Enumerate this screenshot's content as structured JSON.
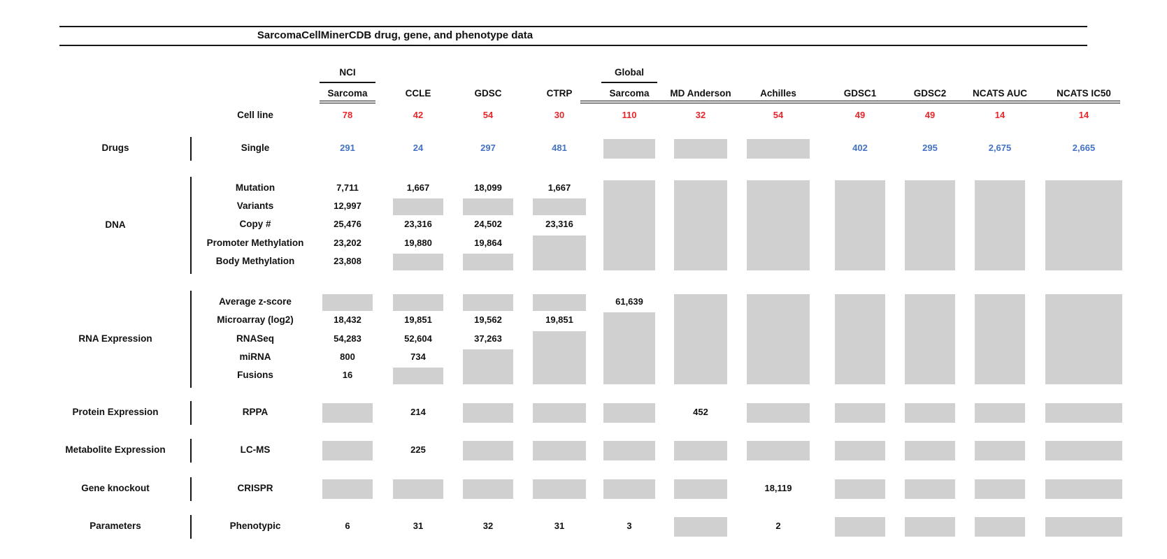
{
  "colors": {
    "black_text": "#111111",
    "red_value": "#e8262b",
    "blue_value": "#4472c4",
    "missing_box": "#d0d0d0",
    "rule_line": "#161616"
  },
  "chart_data": {
    "type": "table",
    "title": "SarcomaCellMinerCDB drug, gene, and phenotype data",
    "column_groups": [
      {
        "top_label": "NCI",
        "over_column": 0
      },
      {
        "top_label": "Global",
        "over_column": 4
      }
    ],
    "columns": [
      "Sarcoma",
      "CCLE",
      "GDSC",
      "CTRP",
      "Sarcoma",
      "MD Anderson",
      "Achilles",
      "GDSC1",
      "GDSC2",
      "NCATS AUC",
      "NCATS IC50"
    ],
    "cell_line": {
      "label": "Cell line",
      "value_color": "red",
      "values": [
        "78",
        "42",
        "54",
        "30",
        "110",
        "32",
        "54",
        "49",
        "49",
        "14",
        "14"
      ]
    },
    "missing_cells_note": null,
    "sections": [
      {
        "category": "Drugs",
        "rows": [
          {
            "label": "Single",
            "value_color": "blue",
            "cells": [
              "291",
              "24",
              "297",
              "481",
              null,
              null,
              null,
              "402",
              "295",
              "2,675",
              "2,665"
            ]
          }
        ]
      },
      {
        "category": "DNA",
        "rows": [
          {
            "label": "Mutation",
            "value_color": "black",
            "cells": [
              "7,711",
              "1,667",
              "18,099",
              "1,667",
              null,
              null,
              null,
              null,
              null,
              null,
              null
            ]
          },
          {
            "label": "Variants",
            "value_color": "black",
            "cells": [
              "12,997",
              null,
              null,
              null,
              null,
              null,
              null,
              null,
              null,
              null,
              null
            ]
          },
          {
            "label": "Copy #",
            "value_color": "black",
            "cells": [
              "25,476",
              "23,316",
              "24,502",
              "23,316",
              null,
              null,
              null,
              null,
              null,
              null,
              null
            ]
          },
          {
            "label": "Promoter Methylation",
            "value_color": "black",
            "cells": [
              "23,202",
              "19,880",
              "19,864",
              null,
              null,
              null,
              null,
              null,
              null,
              null,
              null
            ]
          },
          {
            "label": "Body Methylation",
            "value_color": "black",
            "cells": [
              "23,808",
              null,
              null,
              null,
              null,
              null,
              null,
              null,
              null,
              null,
              null
            ]
          }
        ]
      },
      {
        "category": "RNA Expression",
        "rows": [
          {
            "label": "Average z-score",
            "value_color": "black",
            "cells": [
              null,
              null,
              null,
              null,
              "61,639",
              null,
              null,
              null,
              null,
              null,
              null
            ]
          },
          {
            "label": "Microarray (log2)",
            "value_color": "black",
            "cells": [
              "18,432",
              "19,851",
              "19,562",
              "19,851",
              null,
              null,
              null,
              null,
              null,
              null,
              null
            ]
          },
          {
            "label": "RNASeq",
            "value_color": "black",
            "cells": [
              "54,283",
              "52,604",
              "37,263",
              null,
              null,
              null,
              null,
              null,
              null,
              null,
              null
            ]
          },
          {
            "label": "miRNA",
            "value_color": "black",
            "cells": [
              "800",
              "734",
              null,
              null,
              null,
              null,
              null,
              null,
              null,
              null,
              null
            ]
          },
          {
            "label": "Fusions",
            "value_color": "black",
            "cells": [
              "16",
              null,
              null,
              null,
              null,
              null,
              null,
              null,
              null,
              null,
              null
            ]
          }
        ]
      },
      {
        "category": "Protein Expression",
        "rows": [
          {
            "label": "RPPA",
            "value_color": "black",
            "cells": [
              null,
              "214",
              null,
              null,
              null,
              "452",
              null,
              null,
              null,
              null,
              null
            ]
          }
        ]
      },
      {
        "category": "Metabolite Expression",
        "rows": [
          {
            "label": "LC-MS",
            "value_color": "black",
            "cells": [
              null,
              "225",
              null,
              null,
              null,
              null,
              null,
              null,
              null,
              null,
              null
            ]
          }
        ]
      },
      {
        "category": "Gene knockout",
        "rows": [
          {
            "label": "CRISPR",
            "value_color": "black",
            "cells": [
              null,
              null,
              null,
              null,
              null,
              null,
              "18,119",
              null,
              null,
              null,
              null
            ]
          }
        ]
      },
      {
        "category": "Parameters",
        "rows": [
          {
            "label": "Phenotypic",
            "value_color": "black",
            "cells": [
              "6",
              "31",
              "32",
              "31",
              "3",
              null,
              "2",
              null,
              null,
              null,
              null
            ]
          }
        ]
      }
    ]
  }
}
